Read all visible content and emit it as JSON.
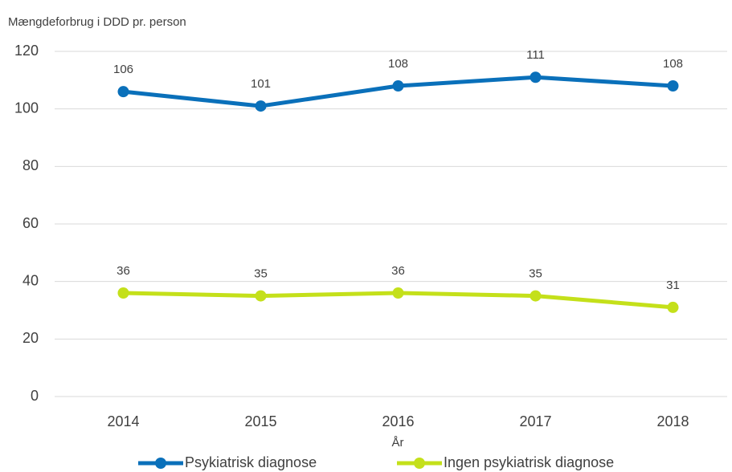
{
  "chart_data": {
    "type": "line",
    "y_label": "Mængdeforbrug i DDD pr. person",
    "x_label": "År",
    "categories": [
      "2014",
      "2015",
      "2016",
      "2017",
      "2018"
    ],
    "series": [
      {
        "name": "Psykiatrisk diagnose",
        "color": "#0a70ba",
        "values": [
          106,
          101,
          108,
          111,
          108
        ]
      },
      {
        "name": "Ingen psykiatrisk diagnose",
        "color": "#c4e01a",
        "values": [
          36,
          35,
          36,
          35,
          31
        ]
      }
    ],
    "ylim": [
      0,
      120
    ],
    "yticks": [
      0,
      20,
      40,
      60,
      80,
      100,
      120
    ],
    "grid": true,
    "legend": "bottom"
  }
}
